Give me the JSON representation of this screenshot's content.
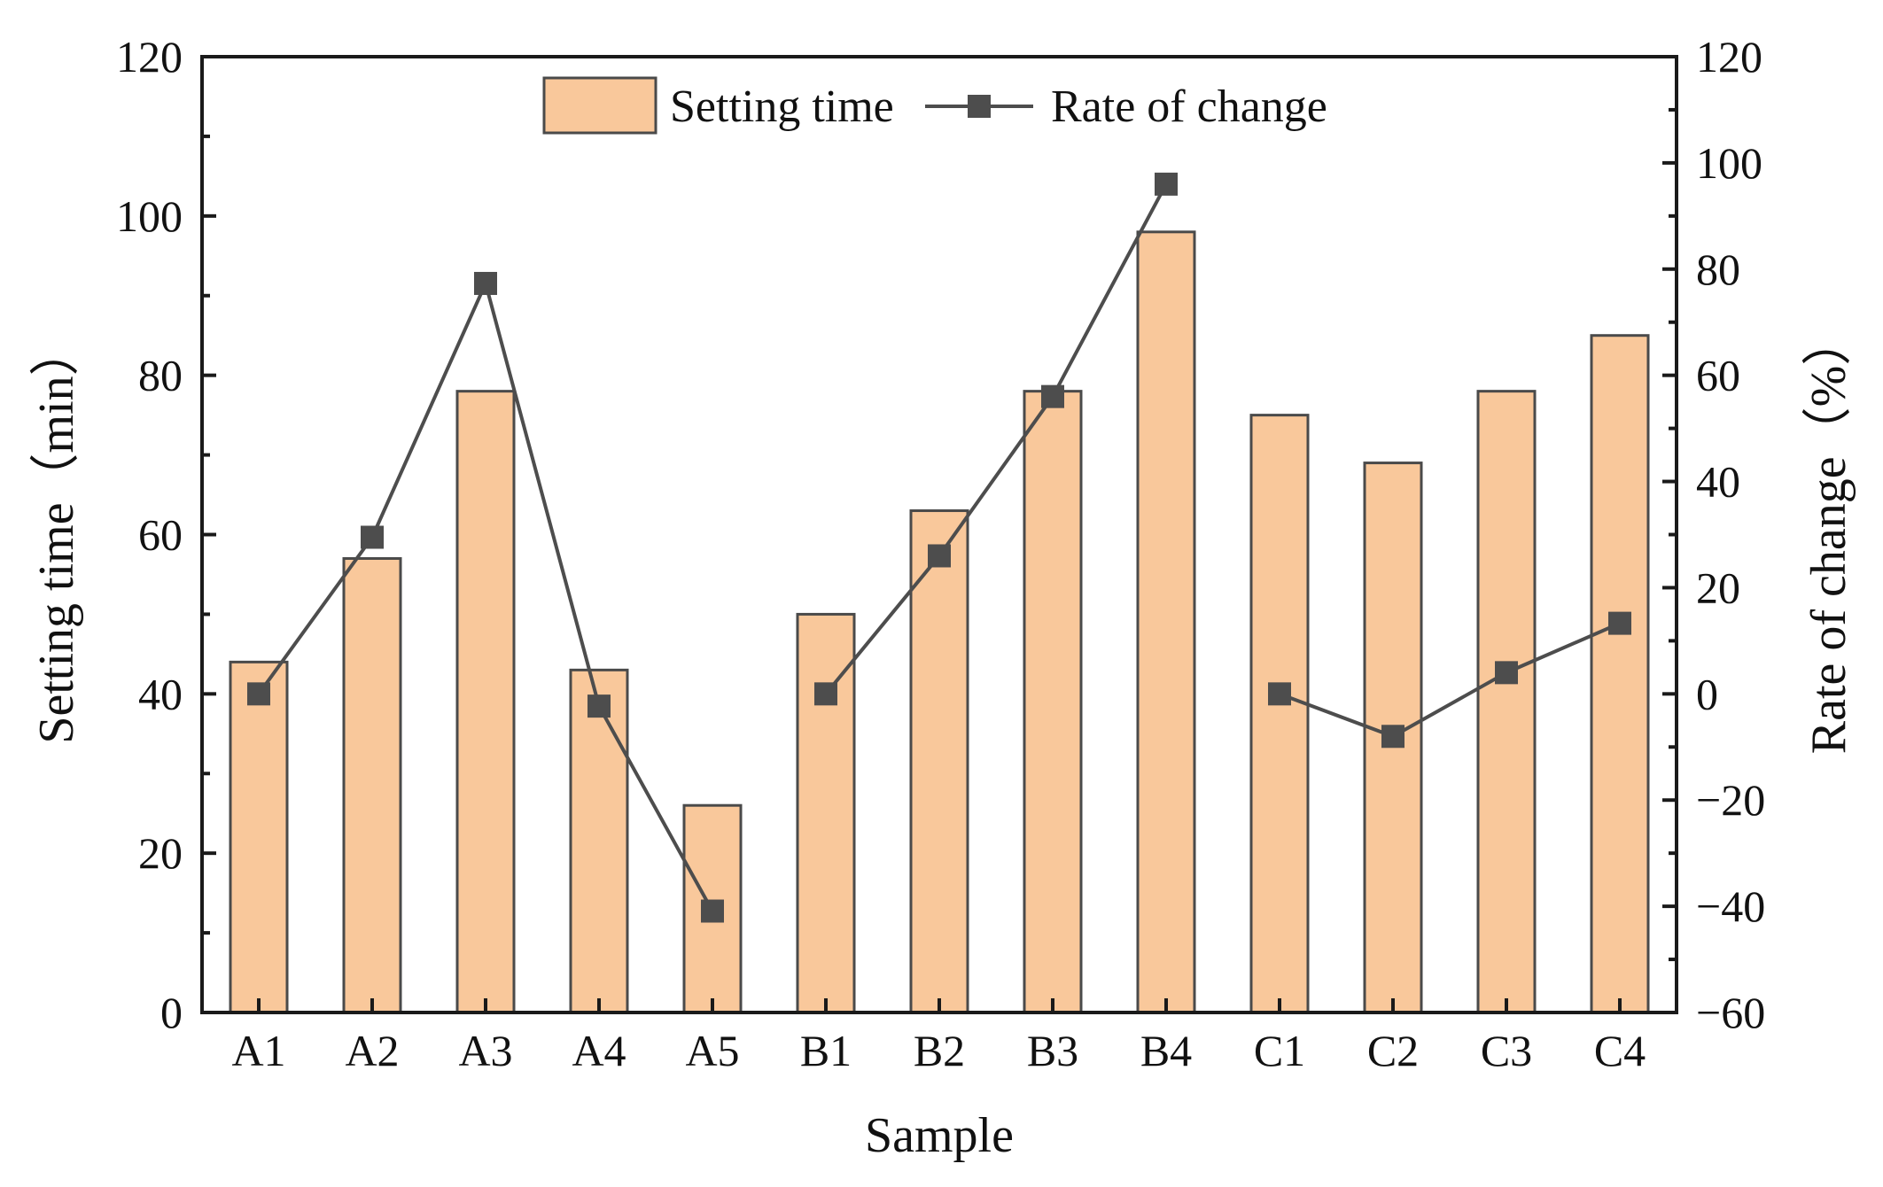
{
  "chart_data": {
    "type": "bar",
    "xlabel": "Sample",
    "ylabel": "Setting time（min）",
    "y2label": "Rate of change（%）",
    "categories": [
      "A1",
      "A2",
      "A3",
      "A4",
      "A5",
      "B1",
      "B2",
      "B3",
      "B4",
      "C1",
      "C2",
      "C3",
      "C4"
    ],
    "ylim": [
      0,
      120
    ],
    "y2lim": [
      -60,
      120
    ],
    "yticks": [
      "0",
      "20",
      "40",
      "60",
      "80",
      "100",
      "120"
    ],
    "y2ticks": [
      "−60",
      "−40",
      "−20",
      "0",
      "20",
      "40",
      "60",
      "80",
      "100",
      "120"
    ],
    "grid": false,
    "legend_position": "top-center",
    "series": [
      {
        "name": "Setting time",
        "kind": "bar",
        "axis": "left",
        "color": "#F9C89B",
        "edge_color": "#4a4a4a",
        "values": [
          44,
          57,
          78,
          43,
          26,
          50,
          63,
          78,
          98,
          75,
          69,
          78,
          85
        ]
      },
      {
        "name": "Rate of change",
        "kind": "line",
        "axis": "right",
        "color": "#4d4d4d",
        "marker": "square",
        "segments": [
          {
            "categories": [
              "A1",
              "A2",
              "A3",
              "A4",
              "A5"
            ],
            "values": [
              0,
              29.5,
              77.3,
              -2.3,
              -40.9
            ]
          },
          {
            "categories": [
              "B1",
              "B2",
              "B3",
              "B4"
            ],
            "values": [
              0,
              26,
              56,
              96
            ]
          },
          {
            "categories": [
              "C1",
              "C2",
              "C3",
              "C4"
            ],
            "values": [
              0,
              -8,
              4,
              13.3
            ]
          }
        ]
      }
    ]
  }
}
